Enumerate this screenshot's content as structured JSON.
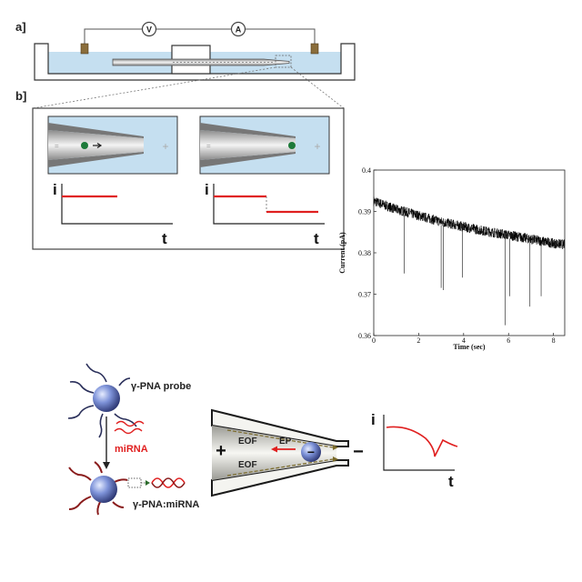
{
  "panel_labels": {
    "a": "a]",
    "b": "b]"
  },
  "circuit": {
    "voltmeter": "V",
    "ammeter": "A"
  },
  "insets": {
    "minus": "=",
    "plus": "+"
  },
  "mini_plots": {
    "y_label": "i",
    "x_label": "t"
  },
  "scheme": {
    "probe_label": "γ-PNA probe",
    "mirna_label": "miRNA",
    "complex_label": "γ-PNA:miRNA",
    "eof_top": "EOF",
    "eof_bottom": "EOF",
    "ep_label": "EP",
    "plus_sign": "+",
    "minus_sign": "−",
    "particle_sign": "−",
    "trace_y": "i",
    "trace_x": "t"
  },
  "colors": {
    "red": "#e02020",
    "buffer_blue": "#c5dff0",
    "particle_blue": "#6a7fd0",
    "green_particle": "#1d7a3a"
  },
  "chart_data": {
    "type": "line",
    "title": "",
    "xlabel": "Time (sec)",
    "ylabel": "Current (pA)",
    "xlim": [
      0,
      8.5
    ],
    "ylim": [
      0.36,
      0.4
    ],
    "xticks": [
      0,
      2,
      4,
      6,
      8
    ],
    "yticks": [
      0.36,
      0.37,
      0.38,
      0.39,
      0.4
    ],
    "xtick_labels": [
      "0",
      "2",
      "4",
      "6",
      "8"
    ],
    "ytick_labels": [
      "0.36",
      "0.37",
      "0.38",
      "0.39",
      "0.4"
    ],
    "baseline": {
      "x": [
        0,
        1,
        2,
        3,
        4,
        5,
        6,
        7,
        8,
        8.5
      ],
      "y": [
        0.3925,
        0.3905,
        0.389,
        0.3875,
        0.3863,
        0.3852,
        0.3843,
        0.3833,
        0.3823,
        0.382
      ]
    },
    "noise_amplitude": 0.0012,
    "spikes": [
      {
        "x": 1.35,
        "y": 0.375
      },
      {
        "x": 3.0,
        "y": 0.3715
      },
      {
        "x": 3.1,
        "y": 0.371
      },
      {
        "x": 3.95,
        "y": 0.374
      },
      {
        "x": 5.85,
        "y": 0.3625
      },
      {
        "x": 6.05,
        "y": 0.3695
      },
      {
        "x": 6.95,
        "y": 0.367
      },
      {
        "x": 7.45,
        "y": 0.3695
      }
    ]
  }
}
